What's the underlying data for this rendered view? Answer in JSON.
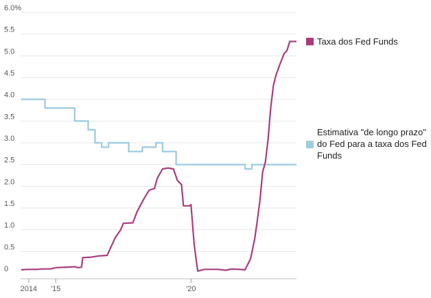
{
  "chart_data": {
    "type": "line",
    "title": "",
    "xlabel": "",
    "ylabel": "",
    "x_range": [
      2013.7,
      2023.9
    ],
    "ylim": [
      0,
      6.0
    ],
    "y_ticks": [
      {
        "value": 0,
        "label": "0"
      },
      {
        "value": 0.5,
        "label": "0.5"
      },
      {
        "value": 1.0,
        "label": "1.0"
      },
      {
        "value": 1.5,
        "label": "1.5"
      },
      {
        "value": 2.0,
        "label": "2.0"
      },
      {
        "value": 2.5,
        "label": "2.5"
      },
      {
        "value": 3.0,
        "label": "3.0"
      },
      {
        "value": 3.5,
        "label": "3.5"
      },
      {
        "value": 4.0,
        "label": "4.0"
      },
      {
        "value": 4.5,
        "label": "4.5"
      },
      {
        "value": 5.0,
        "label": "5.0"
      },
      {
        "value": 5.5,
        "label": "5.5"
      },
      {
        "value": 6.0,
        "label": "6.0%"
      }
    ],
    "x_ticks": [
      {
        "value": 2014,
        "label": "2014"
      },
      {
        "value": 2015,
        "label": "'15"
      },
      {
        "value": 2020,
        "label": "'20"
      }
    ],
    "grid": "horizontal",
    "legend_position": "right",
    "series": [
      {
        "name": "Taxa dos Fed Funds",
        "color": "#a93b7e",
        "points": [
          [
            2013.72,
            0.08
          ],
          [
            2014.0,
            0.09
          ],
          [
            2014.3,
            0.09
          ],
          [
            2014.5,
            0.1
          ],
          [
            2014.8,
            0.1
          ],
          [
            2015.0,
            0.13
          ],
          [
            2015.4,
            0.14
          ],
          [
            2015.7,
            0.15
          ],
          [
            2015.85,
            0.13
          ],
          [
            2015.95,
            0.14
          ],
          [
            2016.0,
            0.36
          ],
          [
            2016.3,
            0.37
          ],
          [
            2016.6,
            0.4
          ],
          [
            2016.9,
            0.41
          ],
          [
            2017.0,
            0.55
          ],
          [
            2017.2,
            0.82
          ],
          [
            2017.4,
            1.0
          ],
          [
            2017.5,
            1.15
          ],
          [
            2017.85,
            1.16
          ],
          [
            2018.0,
            1.41
          ],
          [
            2018.25,
            1.7
          ],
          [
            2018.45,
            1.91
          ],
          [
            2018.65,
            1.95
          ],
          [
            2018.75,
            2.18
          ],
          [
            2018.95,
            2.4
          ],
          [
            2019.15,
            2.42
          ],
          [
            2019.35,
            2.4
          ],
          [
            2019.5,
            2.13
          ],
          [
            2019.65,
            2.04
          ],
          [
            2019.72,
            1.55
          ],
          [
            2019.95,
            1.55
          ],
          [
            2020.0,
            1.58
          ],
          [
            2020.12,
            0.65
          ],
          [
            2020.25,
            0.05
          ],
          [
            2020.5,
            0.09
          ],
          [
            2021.0,
            0.09
          ],
          [
            2021.3,
            0.07
          ],
          [
            2021.5,
            0.1
          ],
          [
            2022.0,
            0.08
          ],
          [
            2022.2,
            0.33
          ],
          [
            2022.35,
            0.77
          ],
          [
            2022.45,
            1.21
          ],
          [
            2022.55,
            1.68
          ],
          [
            2022.65,
            2.33
          ],
          [
            2022.75,
            2.56
          ],
          [
            2022.85,
            3.08
          ],
          [
            2022.95,
            3.83
          ],
          [
            2023.05,
            4.33
          ],
          [
            2023.15,
            4.57
          ],
          [
            2023.3,
            4.83
          ],
          [
            2023.45,
            5.06
          ],
          [
            2023.55,
            5.12
          ],
          [
            2023.65,
            5.33
          ],
          [
            2023.9,
            5.33
          ]
        ]
      },
      {
        "name": "Estimativa \"de longo prazo\" do Fed para a taxa dos Fed Funds",
        "color": "#9fcde2",
        "points": [
          [
            2013.72,
            4.0
          ],
          [
            2014.6,
            4.0
          ],
          [
            2014.6,
            3.8
          ],
          [
            2015.7,
            3.8
          ],
          [
            2015.7,
            3.5
          ],
          [
            2016.2,
            3.5
          ],
          [
            2016.2,
            3.3
          ],
          [
            2016.45,
            3.3
          ],
          [
            2016.45,
            3.0
          ],
          [
            2016.7,
            3.0
          ],
          [
            2016.7,
            2.9
          ],
          [
            2016.95,
            2.9
          ],
          [
            2016.95,
            3.0
          ],
          [
            2017.7,
            3.0
          ],
          [
            2017.7,
            2.8
          ],
          [
            2018.2,
            2.8
          ],
          [
            2018.2,
            2.9
          ],
          [
            2018.7,
            2.9
          ],
          [
            2018.7,
            3.0
          ],
          [
            2018.95,
            3.0
          ],
          [
            2018.95,
            2.8
          ],
          [
            2019.45,
            2.8
          ],
          [
            2019.45,
            2.5
          ],
          [
            2022.0,
            2.5
          ],
          [
            2022.0,
            2.4
          ],
          [
            2022.25,
            2.4
          ],
          [
            2022.25,
            2.5
          ],
          [
            2023.9,
            2.5
          ]
        ]
      }
    ]
  },
  "legend": {
    "items": [
      {
        "label": "Taxa dos Fed Funds",
        "color": "#a93b7e"
      },
      {
        "label": "Estimativa \"de longo prazo\" do Fed para a taxa dos Fed Funds",
        "color": "#9fcde2"
      }
    ]
  }
}
